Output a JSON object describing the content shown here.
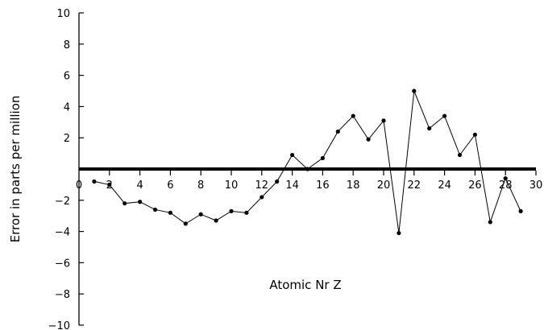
{
  "chart_data": {
    "type": "line",
    "title": "",
    "xlabel": "Atomic Nr Z",
    "ylabel": "Error in parts per million",
    "xlim": [
      0,
      30
    ],
    "ylim": [
      -10,
      10
    ],
    "x_ticks": [
      0,
      2,
      4,
      6,
      8,
      10,
      12,
      14,
      16,
      18,
      20,
      22,
      24,
      26,
      28,
      30
    ],
    "y_ticks": [
      10,
      8,
      6,
      4,
      2,
      -2,
      -4,
      -6,
      -8,
      -10
    ],
    "grid": false,
    "legend": "none",
    "line_color": "#000000",
    "series": [
      {
        "x": [
          1,
          2,
          3,
          4,
          5,
          6,
          7,
          8,
          9,
          10,
          11,
          12,
          13,
          14,
          15,
          16,
          17,
          18,
          19,
          20,
          21,
          22,
          23,
          24,
          25,
          26,
          27,
          28,
          29
        ],
        "y": [
          -0.8,
          -1.0,
          -2.2,
          -2.1,
          -2.6,
          -2.8,
          -3.5,
          -2.9,
          -3.3,
          -2.7,
          -2.8,
          -1.8,
          -0.8,
          0.9,
          0.0,
          0.7,
          2.4,
          3.4,
          1.9,
          3.1,
          -4.1,
          5.0,
          2.6,
          3.4,
          0.9,
          2.2,
          -3.4,
          -0.6,
          -2.7
        ]
      }
    ]
  }
}
